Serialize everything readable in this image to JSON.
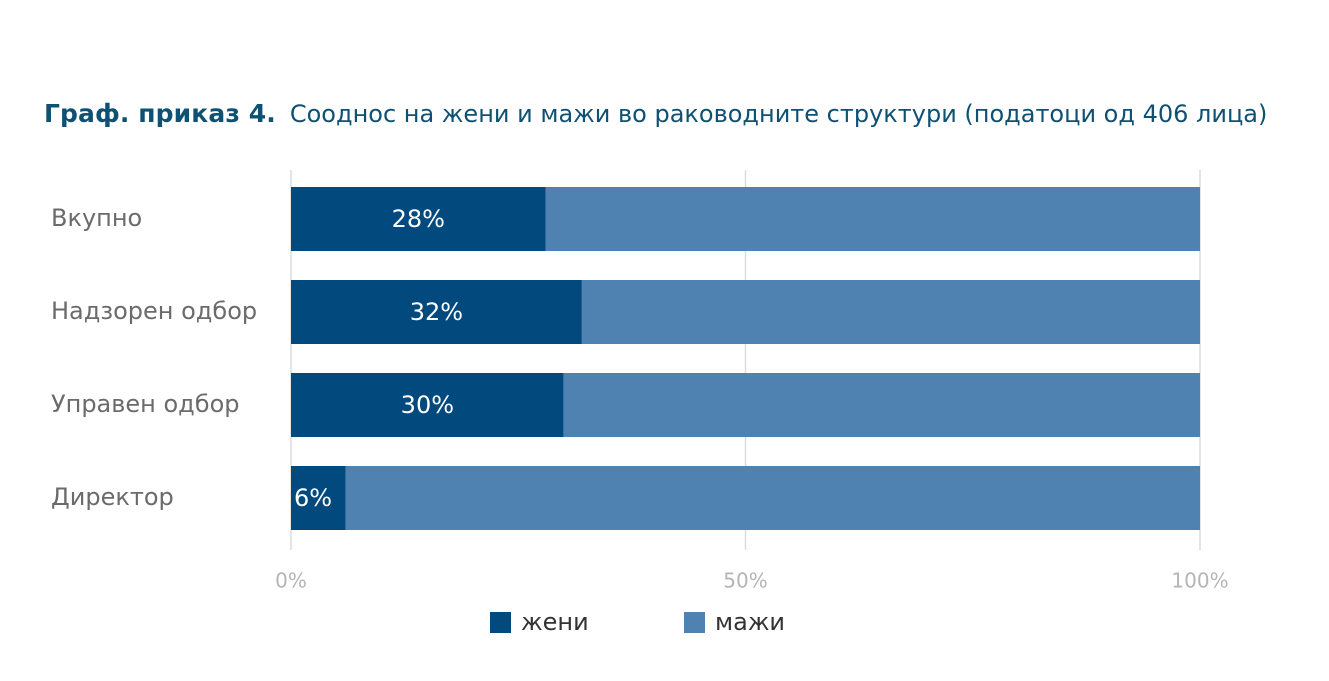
{
  "heading": {
    "label": "Граф. приказ 4.",
    "text": "Сооднос на жени и мажи во раководните структури (податоци од 406 лица)"
  },
  "colors": {
    "women": "#02497e",
    "men": "#4f82b0",
    "grid": "#dcdcdc"
  },
  "chart_data": {
    "type": "bar",
    "orientation": "horizontal",
    "stacked": true,
    "percent": true,
    "categories": [
      "Вкупно",
      "Надзорен одбор",
      "Управен одбор",
      "Директор"
    ],
    "series": [
      {
        "name": "жени",
        "values": [
          28,
          32,
          30,
          6
        ],
        "labels": [
          "28%",
          "32%",
          "30%",
          "6%"
        ]
      },
      {
        "name": "мажи",
        "values": [
          72,
          68,
          70,
          94
        ]
      }
    ],
    "xlim": [
      0,
      100
    ],
    "x_ticks": [
      "0%",
      "50%",
      "100%"
    ],
    "grid": true,
    "legend_position": "bottom"
  }
}
